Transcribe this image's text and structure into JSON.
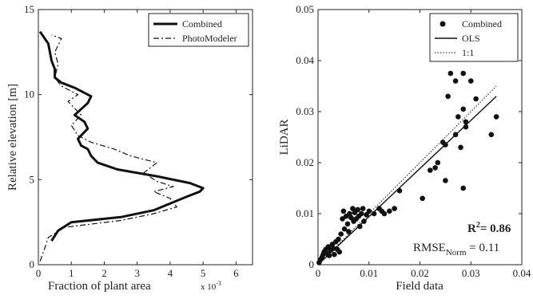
{
  "chart_data": [
    {
      "type": "line",
      "xlabel": "Fraction of plant area",
      "xlabel_multiplier": "x 10",
      "xlabel_multiplier_exp": "-3",
      "ylabel": "Relative elevation [m]",
      "xlim": [
        0,
        6.5
      ],
      "ylim": [
        0,
        15
      ],
      "x_ticks": [
        0,
        1,
        2,
        3,
        4,
        5,
        6
      ],
      "y_ticks": [
        0,
        5,
        10,
        15
      ],
      "legend": {
        "placement": "top-right",
        "entries": [
          "Combined",
          "PhotoModeler"
        ]
      },
      "series": [
        {
          "name": "Combined",
          "style": "solid-thick",
          "points": [
            [
              0.4,
              1.4
            ],
            [
              0.6,
              2.0
            ],
            [
              1.0,
              2.5
            ],
            [
              2.5,
              2.8
            ],
            [
              3.5,
              3.2
            ],
            [
              4.0,
              3.6
            ],
            [
              4.5,
              4.0
            ],
            [
              4.9,
              4.3
            ],
            [
              5.0,
              4.5
            ],
            [
              4.6,
              4.8
            ],
            [
              3.6,
              5.2
            ],
            [
              2.4,
              5.6
            ],
            [
              1.8,
              6.0
            ],
            [
              1.6,
              6.4
            ],
            [
              1.5,
              6.8
            ],
            [
              1.3,
              7.0
            ],
            [
              1.2,
              7.4
            ],
            [
              1.5,
              8.0
            ],
            [
              1.4,
              8.4
            ],
            [
              1.1,
              8.8
            ],
            [
              1.5,
              9.5
            ],
            [
              1.6,
              9.9
            ],
            [
              1.1,
              10.4
            ],
            [
              0.7,
              10.7
            ],
            [
              0.5,
              11.0
            ],
            [
              0.5,
              11.5
            ],
            [
              0.4,
              12.0
            ],
            [
              0.3,
              13.0
            ],
            [
              0.05,
              13.7
            ]
          ]
        },
        {
          "name": "PhotoModeler",
          "style": "dash-dot",
          "points": [
            [
              0.05,
              0.2
            ],
            [
              0.2,
              1.0
            ],
            [
              0.3,
              1.6
            ],
            [
              0.8,
              2.2
            ],
            [
              2.5,
              2.6
            ],
            [
              3.5,
              3.0
            ],
            [
              4.2,
              3.4
            ],
            [
              4.0,
              3.9
            ],
            [
              3.5,
              4.3
            ],
            [
              4.1,
              4.6
            ],
            [
              3.6,
              4.9
            ],
            [
              3.2,
              5.4
            ],
            [
              3.6,
              6.0
            ],
            [
              2.8,
              6.4
            ],
            [
              2.3,
              6.8
            ],
            [
              1.6,
              7.2
            ],
            [
              1.2,
              7.6
            ],
            [
              1.0,
              8.2
            ],
            [
              1.3,
              8.8
            ],
            [
              0.9,
              9.6
            ],
            [
              1.2,
              10.0
            ],
            [
              0.7,
              10.5
            ],
            [
              0.5,
              11.0
            ],
            [
              0.6,
              11.8
            ],
            [
              0.5,
              12.5
            ],
            [
              0.7,
              13.3
            ],
            [
              0.4,
              13.5
            ]
          ]
        }
      ]
    },
    {
      "type": "scatter",
      "xlabel": "Field data",
      "ylabel": "LiDAR",
      "xlim": [
        0,
        0.04
      ],
      "ylim": [
        0,
        0.05
      ],
      "x_ticks": [
        0,
        0.01,
        0.02,
        0.03,
        0.04
      ],
      "x_tick_labels": [
        "0",
        "0.01",
        "0.02",
        "0.03",
        "0.04"
      ],
      "y_ticks": [
        0,
        0.01,
        0.02,
        0.03,
        0.04,
        0.05
      ],
      "y_tick_labels": [
        "0",
        "0.01",
        "0.02",
        "0.03",
        "0.04",
        "0.05"
      ],
      "legend": {
        "placement": "top-right",
        "entries": [
          "Combined",
          "OLS",
          "1:1"
        ]
      },
      "r2_label": "R",
      "r2_sup": "2",
      "r2_value": "= 0.86",
      "rmse_label": "RMSE",
      "rmse_sub": "Norm",
      "rmse_value": " = 0.11",
      "ols_line": [
        [
          0.0,
          0.0
        ],
        [
          0.035,
          0.033
        ]
      ],
      "one_to_one_line": [
        [
          0.0,
          0.0
        ],
        [
          0.035,
          0.035
        ]
      ],
      "points": [
        [
          0.0002,
          0.0004
        ],
        [
          0.0005,
          0.001
        ],
        [
          0.0008,
          0.0015
        ],
        [
          0.001,
          0.002
        ],
        [
          0.0012,
          0.0025
        ],
        [
          0.0015,
          0.003
        ],
        [
          0.0018,
          0.0022
        ],
        [
          0.002,
          0.0035
        ],
        [
          0.0022,
          0.0018
        ],
        [
          0.0025,
          0.0028
        ],
        [
          0.0028,
          0.004
        ],
        [
          0.003,
          0.0032
        ],
        [
          0.0032,
          0.002
        ],
        [
          0.0035,
          0.0045
        ],
        [
          0.0038,
          0.003
        ],
        [
          0.004,
          0.005
        ],
        [
          0.0042,
          0.0025
        ],
        [
          0.0045,
          0.006
        ],
        [
          0.0048,
          0.009
        ],
        [
          0.005,
          0.0105
        ],
        [
          0.0052,
          0.007
        ],
        [
          0.0055,
          0.0095
        ],
        [
          0.0058,
          0.008
        ],
        [
          0.006,
          0.0065
        ],
        [
          0.0062,
          0.01
        ],
        [
          0.0065,
          0.0092
        ],
        [
          0.0068,
          0.011
        ],
        [
          0.007,
          0.0085
        ],
        [
          0.0072,
          0.0102
        ],
        [
          0.0075,
          0.009
        ],
        [
          0.0078,
          0.0108
        ],
        [
          0.008,
          0.0095
        ],
        [
          0.0082,
          0.0075
        ],
        [
          0.0085,
          0.01
        ],
        [
          0.0088,
          0.011
        ],
        [
          0.009,
          0.0085
        ],
        [
          0.0095,
          0.0098
        ],
        [
          0.01,
          0.0105
        ],
        [
          0.011,
          0.01
        ],
        [
          0.012,
          0.011
        ],
        [
          0.0125,
          0.0105
        ],
        [
          0.013,
          0.01
        ],
        [
          0.014,
          0.0105
        ],
        [
          0.015,
          0.011
        ],
        [
          0.016,
          0.0145
        ],
        [
          0.0205,
          0.013
        ],
        [
          0.022,
          0.0185
        ],
        [
          0.023,
          0.019
        ],
        [
          0.0235,
          0.02
        ],
        [
          0.0245,
          0.024
        ],
        [
          0.025,
          0.0235
        ],
        [
          0.025,
          0.0165
        ],
        [
          0.0255,
          0.033
        ],
        [
          0.026,
          0.0375
        ],
        [
          0.027,
          0.036
        ],
        [
          0.027,
          0.0255
        ],
        [
          0.0275,
          0.029
        ],
        [
          0.028,
          0.023
        ],
        [
          0.0285,
          0.0375
        ],
        [
          0.0285,
          0.0305
        ],
        [
          0.0285,
          0.015
        ],
        [
          0.029,
          0.028
        ],
        [
          0.029,
          0.027
        ],
        [
          0.03,
          0.036
        ],
        [
          0.031,
          0.0325
        ],
        [
          0.034,
          0.0255
        ],
        [
          0.035,
          0.029
        ]
      ]
    }
  ]
}
